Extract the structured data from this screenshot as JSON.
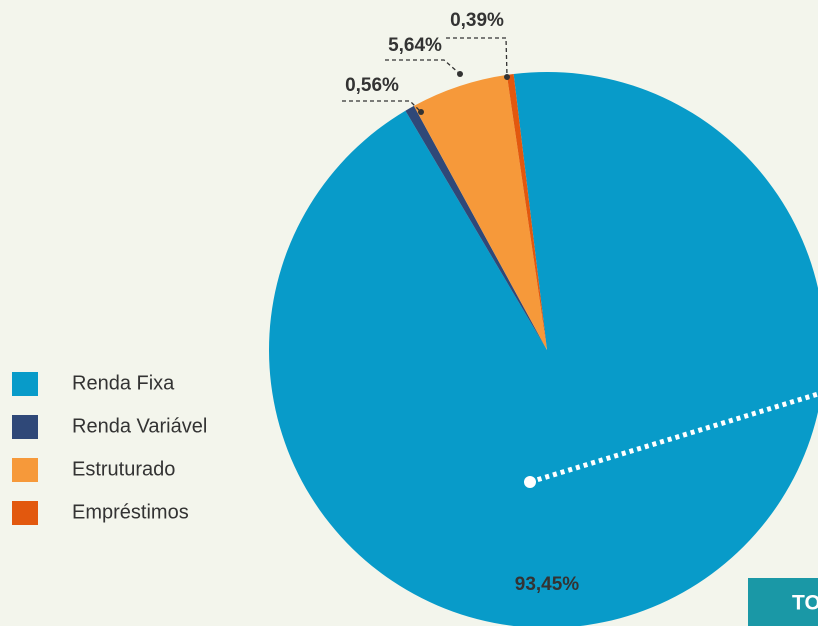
{
  "chart_data": {
    "type": "pie",
    "categories": [
      "Renda Fixa",
      "Renda Variável",
      "Estruturado",
      "Empréstimos"
    ],
    "values": [
      93.45,
      0.56,
      5.64,
      0.39
    ],
    "value_labels": [
      "93,45%",
      "0,56%",
      "5,64%",
      "0,39%"
    ],
    "colors": [
      "#089bc9",
      "#2f4878",
      "#f6993a",
      "#e2580e"
    ],
    "legend": "left",
    "annotation": "TO"
  }
}
